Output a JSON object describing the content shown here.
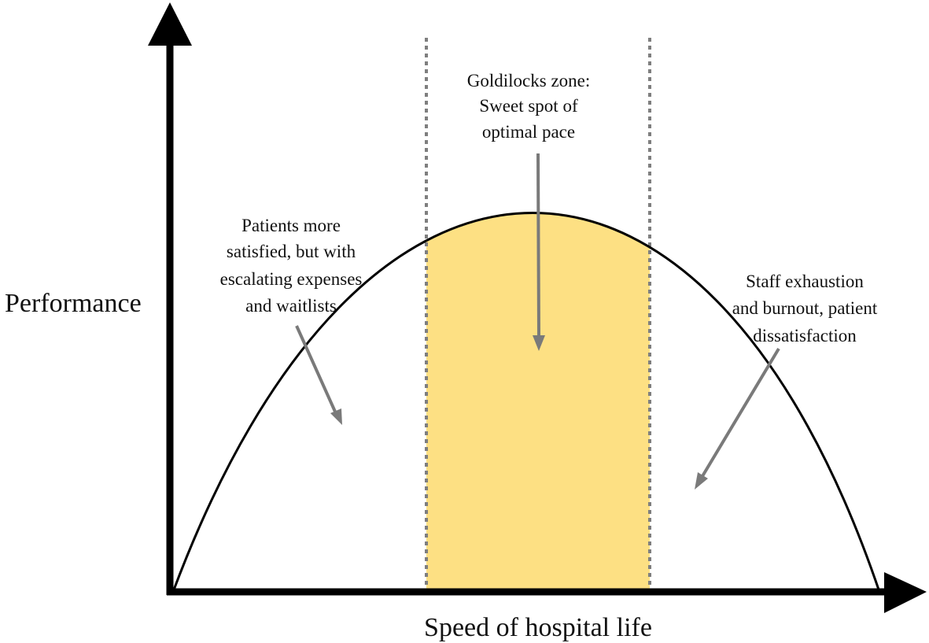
{
  "y_axis_label": "Performance",
  "x_axis_label": "Speed of hospital life",
  "annotations": {
    "goldilocks": [
      "Goldilocks zone:",
      "Sweet spot of",
      "optimal pace"
    ],
    "left": [
      "Patients more",
      "satisfied, but with",
      "escalating expenses",
      "and waitlists"
    ],
    "right": [
      "Staff exhaustion",
      "and burnout, patient",
      "dissatisfaction"
    ]
  },
  "colors": {
    "zone_fill": "#fde083",
    "curve": "#000000",
    "axis": "#000000",
    "arrow": "#7a7a7a",
    "divider": "#7f7f7f"
  }
}
